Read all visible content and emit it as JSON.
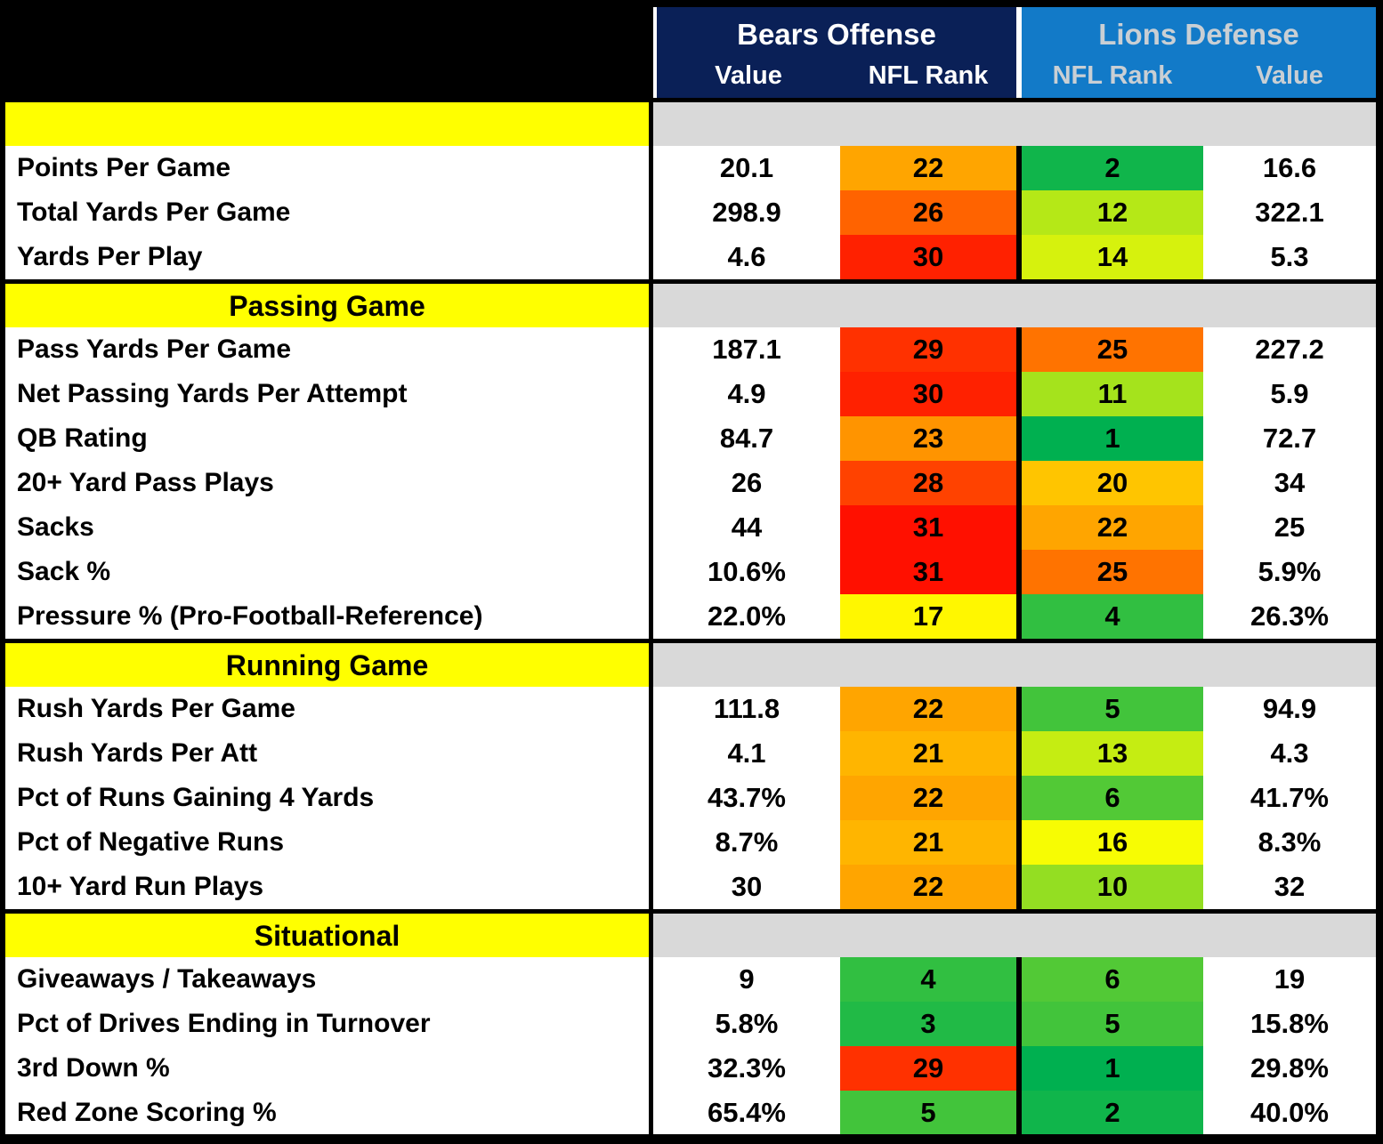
{
  "colors": {
    "bears_header_bg": "#0A2057",
    "bears_header_text": "#FFFFFF",
    "lions_header_bg": "#127AC8",
    "lions_header_text": "#C9CFD4",
    "section_label_bg": "#FFFF00",
    "section_value_bg": "#D9D9D9",
    "grid_border": "#000000",
    "rank_scale_best": "#00B050",
    "rank_scale_mid": "#FFFF00",
    "rank_scale_worst": "#FF0000"
  },
  "chart_data": {
    "type": "table",
    "column_groups": [
      {
        "title": "Bears Offense",
        "col1": "Value",
        "col2": "NFL Rank"
      },
      {
        "title": "Lions Defense",
        "col1": "NFL Rank",
        "col2": "Value"
      }
    ],
    "rank_scale": {
      "min": 1,
      "max": 32,
      "note": "green=best rank, yellow=middle, red=worst"
    },
    "sections": [
      {
        "title": "",
        "rows": [
          {
            "label": "Points Per Game",
            "bears": {
              "value": "20.1",
              "rank": "22",
              "rank_color": "#FFA500"
            },
            "lions": {
              "rank": "2",
              "rank_color": "#10B54B",
              "value": "16.6"
            }
          },
          {
            "label": "Total Yards Per Game",
            "bears": {
              "value": "298.9",
              "rank": "26",
              "rank_color": "#FF6300"
            },
            "lions": {
              "rank": "12",
              "rank_color": "#B5E817",
              "value": "322.1"
            }
          },
          {
            "label": "Yards Per Play",
            "bears": {
              "value": "4.6",
              "rank": "30",
              "rank_color": "#FF2100"
            },
            "lions": {
              "rank": "14",
              "rank_color": "#D6F20D",
              "value": "5.3"
            }
          }
        ]
      },
      {
        "title": "Passing Game",
        "rows": [
          {
            "label": "Pass Yards Per Game",
            "bears": {
              "value": "187.1",
              "rank": "29",
              "rank_color": "#FF3100"
            },
            "lions": {
              "rank": "25",
              "rank_color": "#FF7300",
              "value": "227.2"
            }
          },
          {
            "label": "Net Passing Yards Per Attempt",
            "bears": {
              "value": "4.9",
              "rank": "30",
              "rank_color": "#FF2100"
            },
            "lions": {
              "rank": "11",
              "rank_color": "#A5E31C",
              "value": "5.9"
            }
          },
          {
            "label": "QB Rating",
            "bears": {
              "value": "84.7",
              "rank": "23",
              "rank_color": "#FF9400"
            },
            "lions": {
              "rank": "1",
              "rank_color": "#00B050",
              "value": "72.7"
            }
          },
          {
            "label": "20+ Yard Pass Plays",
            "bears": {
              "value": "26",
              "rank": "28",
              "rank_color": "#FF4200"
            },
            "lions": {
              "rank": "20",
              "rank_color": "#FFC500",
              "value": "34"
            }
          },
          {
            "label": "Sacks",
            "bears": {
              "value": "44",
              "rank": "31",
              "rank_color": "#FF1000"
            },
            "lions": {
              "rank": "22",
              "rank_color": "#FFA500",
              "value": "25"
            }
          },
          {
            "label": "Sack %",
            "bears": {
              "value": "10.6%",
              "rank": "31",
              "rank_color": "#FF1000"
            },
            "lions": {
              "rank": "25",
              "rank_color": "#FF7300",
              "value": "5.9%"
            }
          },
          {
            "label": "Pressure % (Pro-Football-Reference)",
            "bears": {
              "value": "22.0%",
              "rank": "17",
              "rank_color": "#FFF700"
            },
            "lions": {
              "rank": "4",
              "rank_color": "#31BF41",
              "value": "26.3%"
            }
          }
        ]
      },
      {
        "title": "Running Game",
        "rows": [
          {
            "label": "Rush Yards Per Game",
            "bears": {
              "value": "111.8",
              "rank": "22",
              "rank_color": "#FFA500"
            },
            "lions": {
              "rank": "5",
              "rank_color": "#42C43B",
              "value": "94.9"
            }
          },
          {
            "label": "Rush Yards Per Att",
            "bears": {
              "value": "4.1",
              "rank": "21",
              "rank_color": "#FFB500"
            },
            "lions": {
              "rank": "13",
              "rank_color": "#C5ED12",
              "value": "4.3"
            }
          },
          {
            "label": "Pct of Runs Gaining 4 Yards",
            "bears": {
              "value": "43.7%",
              "rank": "22",
              "rank_color": "#FFA500"
            },
            "lions": {
              "rank": "6",
              "rank_color": "#52C936",
              "value": "41.7%"
            }
          },
          {
            "label": "Pct of Negative Runs",
            "bears": {
              "value": "8.7%",
              "rank": "21",
              "rank_color": "#FFB500"
            },
            "lions": {
              "rank": "16",
              "rank_color": "#F7FC03",
              "value": "8.3%"
            }
          },
          {
            "label": "10+ Yard Run Plays",
            "bears": {
              "value": "30",
              "rank": "22",
              "rank_color": "#FFA500"
            },
            "lions": {
              "rank": "10",
              "rank_color": "#94DE22",
              "value": "32"
            }
          }
        ]
      },
      {
        "title": "Situational",
        "rows": [
          {
            "label": "Giveaways / Takeaways",
            "bears": {
              "value": "9",
              "rank": "4",
              "rank_color": "#31BF41"
            },
            "lions": {
              "rank": "6",
              "rank_color": "#52C936",
              "value": "19"
            }
          },
          {
            "label": "Pct of Drives Ending in Turnover",
            "bears": {
              "value": "5.8%",
              "rank": "3",
              "rank_color": "#21BA46"
            },
            "lions": {
              "rank": "5",
              "rank_color": "#42C43B",
              "value": "15.8%"
            }
          },
          {
            "label": "3rd Down %",
            "bears": {
              "value": "32.3%",
              "rank": "29",
              "rank_color": "#FF3100"
            },
            "lions": {
              "rank": "1",
              "rank_color": "#00B050",
              "value": "29.8%"
            }
          },
          {
            "label": "Red Zone Scoring %",
            "bears": {
              "value": "65.4%",
              "rank": "5",
              "rank_color": "#42C43B"
            },
            "lions": {
              "rank": "2",
              "rank_color": "#10B54B",
              "value": "40.0%"
            }
          }
        ]
      }
    ]
  }
}
